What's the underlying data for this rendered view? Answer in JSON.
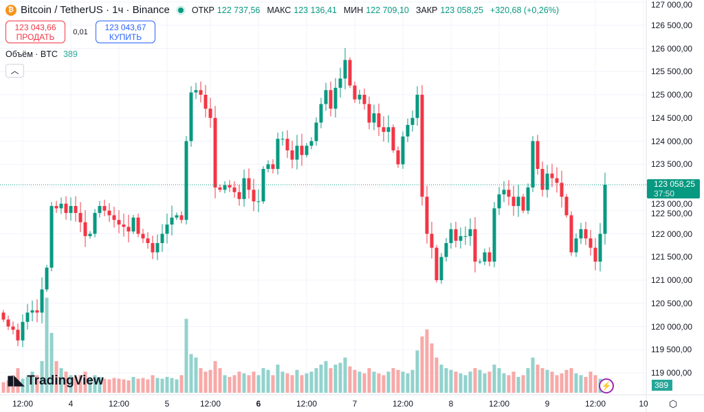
{
  "header": {
    "symbol": "Bitcoin / TetherUS · 1ч · Binance",
    "open_label": "ОТКР",
    "open": "122 737,56",
    "high_label": "МАКС",
    "high": "123 136,41",
    "low_label": "МИН",
    "low": "122 709,10",
    "close_label": "ЗАКР",
    "close": "123 058,25",
    "change": "+320,68 (+0,26%)"
  },
  "trade": {
    "sell_price": "123 043,66",
    "sell_label": "ПРОДАТЬ",
    "spread": "0,01",
    "buy_price": "123 043,67",
    "buy_label": "КУПИТЬ"
  },
  "volume": {
    "label": "Объём · BTC",
    "value": "389"
  },
  "brand": "TradingView",
  "current": {
    "price": "123 058,25",
    "countdown": "37:50"
  },
  "colors": {
    "up": "#089981",
    "down": "#f23645",
    "vol_up": "#92d2cc",
    "vol_down": "#f7a9a7"
  },
  "chart_data": {
    "type": "candlestick",
    "price_axis": [
      "127 000,00",
      "126 500,00",
      "126 000,00",
      "125 500,00",
      "125 000,00",
      "124 500,00",
      "124 000,00",
      "123 500,00",
      "123 000,00",
      "122 500,00",
      "122 000,00",
      "121 500,00",
      "121 000,00",
      "120 500,00",
      "120 000,00",
      "119 500,00",
      "119 000,00"
    ],
    "ylim": [
      119000,
      127000
    ],
    "time_axis": [
      {
        "t": "12:00",
        "i": 4
      },
      {
        "t": "4",
        "i": 14
      },
      {
        "t": "12:00",
        "i": 24
      },
      {
        "t": "5",
        "i": 34
      },
      {
        "t": "12:00",
        "i": 43
      },
      {
        "t": "6",
        "i": 53,
        "bold": true
      },
      {
        "t": "12:00",
        "i": 63
      },
      {
        "t": "7",
        "i": 73
      },
      {
        "t": "12:00",
        "i": 83
      },
      {
        "t": "8",
        "i": 93
      },
      {
        "t": "12:00",
        "i": 103
      },
      {
        "t": "9",
        "i": 113
      },
      {
        "t": "12:00",
        "i": 123
      },
      {
        "t": "10",
        "i": 133
      }
    ],
    "first_open": 120300,
    "closes": [
      120150,
      120000,
      119930,
      119700,
      120100,
      120300,
      120350,
      120300,
      120800,
      121270,
      122600,
      122550,
      122650,
      122450,
      122600,
      122450,
      122250,
      121950,
      122000,
      122450,
      122600,
      122500,
      122400,
      122300,
      122200,
      122150,
      122050,
      122350,
      122000,
      121900,
      121800,
      121600,
      121800,
      122000,
      122200,
      122350,
      122400,
      122300,
      124000,
      125050,
      125100,
      125000,
      124700,
      124500,
      123000,
      122950,
      123050,
      123000,
      122900,
      122750,
      123200,
      122950,
      122700,
      122700,
      123400,
      123500,
      123400,
      124050,
      124050,
      123800,
      123600,
      123900,
      123700,
      123900,
      124000,
      124400,
      124800,
      125100,
      124700,
      125150,
      125350,
      125750,
      125200,
      124900,
      125000,
      124800,
      124400,
      124600,
      124300,
      124200,
      124300,
      123800,
      123500,
      124100,
      124350,
      124500,
      125000,
      122800,
      122000,
      121700,
      121000,
      121500,
      121800,
      122100,
      121850,
      121950,
      121950,
      122100,
      121400,
      121400,
      121600,
      121400,
      122550,
      122850,
      122950,
      122800,
      122600,
      122800,
      122500,
      123000,
      124000,
      123400,
      122950,
      123300,
      123200,
      123100,
      122800,
      122400,
      121600,
      121900,
      122100,
      121900,
      121700,
      121400,
      122000,
      123058
    ],
    "volumes": [
      300,
      350,
      500,
      700,
      400,
      450,
      600,
      500,
      900,
      2700,
      1700,
      900,
      700,
      600,
      500,
      450,
      500,
      600,
      400,
      500,
      450,
      400,
      380,
      420,
      400,
      380,
      350,
      450,
      400,
      420,
      380,
      500,
      420,
      400,
      450,
      420,
      380,
      500,
      2100,
      1100,
      1000,
      700,
      600,
      650,
      900,
      700,
      500,
      450,
      500,
      600,
      550,
      500,
      600,
      500,
      700,
      650,
      500,
      800,
      600,
      550,
      500,
      650,
      500,
      550,
      600,
      700,
      800,
      900,
      700,
      800,
      850,
      1000,
      750,
      650,
      600,
      550,
      700,
      600,
      550,
      500,
      600,
      700,
      650,
      600,
      550,
      650,
      1200,
      1600,
      1800,
      1400,
      1000,
      800,
      700,
      650,
      600,
      550,
      500,
      600,
      700,
      650,
      550,
      600,
      800,
      700,
      550,
      500,
      600,
      450,
      500,
      700,
      1000,
      800,
      700,
      650,
      600,
      500,
      550,
      650,
      700,
      550,
      500,
      450,
      600,
      500,
      400,
      389
    ]
  }
}
